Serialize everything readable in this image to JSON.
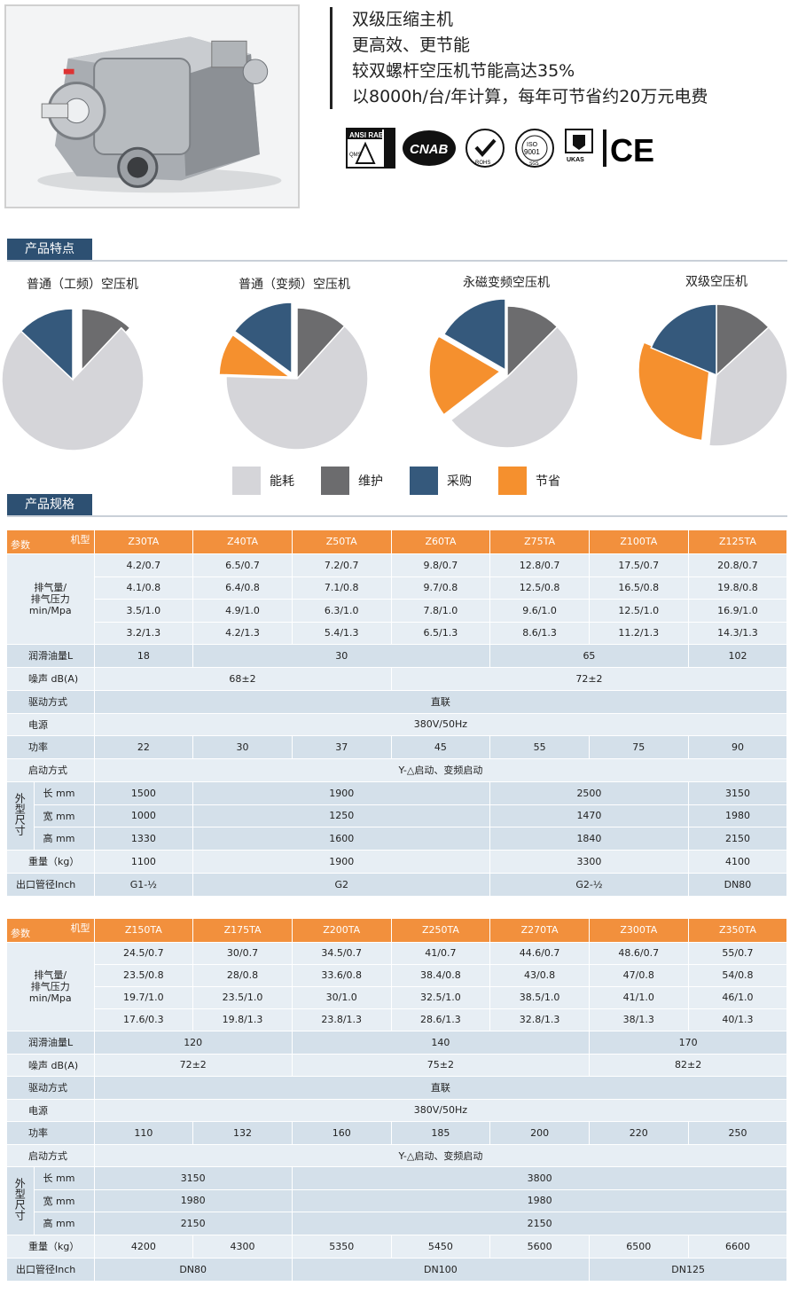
{
  "headline": {
    "lines": [
      "双级压缩主机",
      "更高效、更节能",
      "较双螺杆空压机节能高达35%",
      "以8000h/台/年计算，每年可节省约20万元电费"
    ]
  },
  "badges": [
    "ANSI RAB QMS ACCREDITED",
    "CNAB",
    "ROHS",
    "ISO 9001 SGS",
    "UKAS",
    "CE"
  ],
  "sections": {
    "features": "产品特点",
    "specs": "产品规格"
  },
  "colors": {
    "energy": "#d5d5d9",
    "maintenance": "#6c6c6e",
    "purchase": "#35597c",
    "saving": "#f5902e",
    "header": "#f2903d",
    "tab": "#2d5072"
  },
  "chart_data": [
    {
      "type": "pie",
      "title": "普通（工频）空压机",
      "categories": [
        "能耗",
        "维护",
        "采购"
      ],
      "values": [
        75,
        12,
        13
      ]
    },
    {
      "type": "pie",
      "title": "普通（变频）空压机",
      "categories": [
        "能耗",
        "维护",
        "采购",
        "节省"
      ],
      "values": [
        60,
        11,
        14,
        9
      ]
    },
    {
      "type": "pie",
      "title": "永磁变频空压机",
      "categories": [
        "能耗",
        "维护",
        "采购",
        "节省"
      ],
      "values": [
        50,
        12,
        16,
        18
      ]
    },
    {
      "type": "pie",
      "title": "双级空压机",
      "categories": [
        "能耗",
        "维护",
        "采购",
        "节省"
      ],
      "values": [
        35,
        12,
        17,
        27
      ]
    }
  ],
  "legend": [
    {
      "label": "能耗",
      "color": "#d5d5d9"
    },
    {
      "label": "维护",
      "color": "#6c6c6e"
    },
    {
      "label": "采购",
      "color": "#35597c"
    },
    {
      "label": "节省",
      "color": "#f5902e"
    }
  ],
  "table1": {
    "corner_model": "机型",
    "corner_param": "参数",
    "models": [
      "Z30TA",
      "Z40TA",
      "Z50TA",
      "Z60TA",
      "Z75TA",
      "Z100TA",
      "Z125TA"
    ],
    "flow_label": "排气量/\n排气压力\nmin/Mpa",
    "flow": [
      [
        "4.2/0.7",
        "6.5/0.7",
        "7.2/0.7",
        "9.8/0.7",
        "12.8/0.7",
        "17.5/0.7",
        "20.8/0.7"
      ],
      [
        "4.1/0.8",
        "6.4/0.8",
        "7.1/0.8",
        "9.7/0.8",
        "12.5/0.8",
        "16.5/0.8",
        "19.8/0.8"
      ],
      [
        "3.5/1.0",
        "4.9/1.0",
        "6.3/1.0",
        "7.8/1.0",
        "9.6/1.0",
        "12.5/1.0",
        "16.9/1.0"
      ],
      [
        "3.2/1.3",
        "4.2/1.3",
        "5.4/1.3",
        "6.5/1.3",
        "8.6/1.3",
        "11.2/1.3",
        "14.3/1.3"
      ]
    ],
    "oil_label": "润滑油量L",
    "oil": [
      "18",
      "30",
      "65",
      "102"
    ],
    "noise_label": "噪声 dB(A)",
    "noise": [
      "68±2",
      "72±2"
    ],
    "drive_label": "驱动方式",
    "drive": "直联",
    "power_src_label": "电源",
    "power_src": "380V/50Hz",
    "power_label": "功率",
    "power": [
      "22",
      "30",
      "37",
      "45",
      "55",
      "75",
      "90"
    ],
    "start_label": "启动方式",
    "start": "Y-△启动、变频启动",
    "dim_label": "外型尺寸",
    "len_label": "长 mm",
    "len": [
      "1500",
      "1900",
      "2500",
      "3150"
    ],
    "wid_label": "宽 mm",
    "wid": [
      "1000",
      "1250",
      "1470",
      "1980"
    ],
    "hei_label": "高 mm",
    "hei": [
      "1330",
      "1600",
      "1840",
      "2150"
    ],
    "weight_label": "重量（kg）",
    "weight": [
      "1100",
      "1900",
      "3300",
      "4100"
    ],
    "outlet_label": "出口管径Inch",
    "outlet": [
      "G1-½",
      "G2",
      "G2-½",
      "DN80"
    ]
  },
  "table2": {
    "corner_model": "机型",
    "corner_param": "参数",
    "models": [
      "Z150TA",
      "Z175TA",
      "Z200TA",
      "Z250TA",
      "Z270TA",
      "Z300TA",
      "Z350TA"
    ],
    "flow_label": "排气量/\n排气压力\nmin/Mpa",
    "flow": [
      [
        "24.5/0.7",
        "30/0.7",
        "34.5/0.7",
        "41/0.7",
        "44.6/0.7",
        "48.6/0.7",
        "55/0.7"
      ],
      [
        "23.5/0.8",
        "28/0.8",
        "33.6/0.8",
        "38.4/0.8",
        "43/0.8",
        "47/0.8",
        "54/0.8"
      ],
      [
        "19.7/1.0",
        "23.5/1.0",
        "30/1.0",
        "32.5/1.0",
        "38.5/1.0",
        "41/1.0",
        "46/1.0"
      ],
      [
        "17.6/0.3",
        "19.8/1.3",
        "23.8/1.3",
        "28.6/1.3",
        "32.8/1.3",
        "38/1.3",
        "40/1.3"
      ]
    ],
    "oil_label": "润滑油量L",
    "oil": [
      "120",
      "140",
      "170"
    ],
    "noise_label": "噪声 dB(A)",
    "noise": [
      "72±2",
      "75±2",
      "82±2"
    ],
    "drive_label": "驱动方式",
    "drive": "直联",
    "power_src_label": "电源",
    "power_src": "380V/50Hz",
    "power_label": "功率",
    "power": [
      "110",
      "132",
      "160",
      "185",
      "200",
      "220",
      "250"
    ],
    "start_label": "启动方式",
    "start": "Y-△启动、变频启动",
    "dim_label": "外型尺寸",
    "len_label": "长 mm",
    "len": [
      "3150",
      "3800"
    ],
    "wid_label": "宽 mm",
    "wid": [
      "1980",
      "1980"
    ],
    "hei_label": "高 mm",
    "hei": [
      "2150",
      "2150"
    ],
    "weight_label": "重量（kg）",
    "weight": [
      "4200",
      "4300",
      "5350",
      "5450",
      "5600",
      "6500",
      "6600"
    ],
    "outlet_label": "出口管径Inch",
    "outlet": [
      "DN80",
      "DN100",
      "DN125"
    ]
  }
}
